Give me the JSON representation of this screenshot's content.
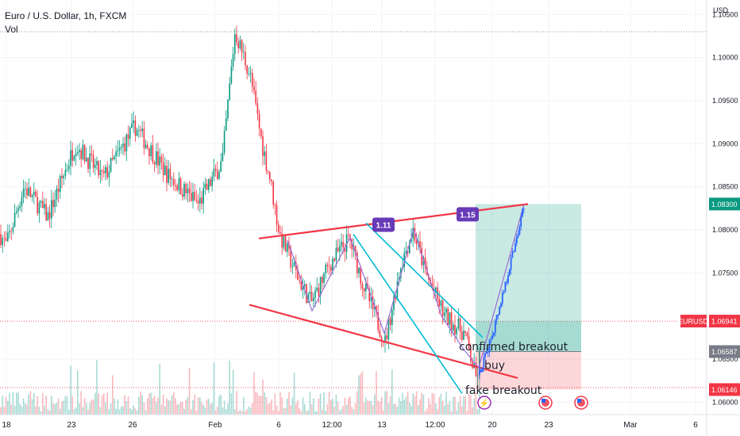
{
  "header": {
    "symbol_line": "Euro / U.S. Dollar, 1h, FXCM",
    "indicator": "Vol"
  },
  "chart_data": {
    "type": "candlestick",
    "symbol": "EURUSD",
    "currency_label": "USD",
    "ylim": [
      1.0585,
      1.1065
    ],
    "y_ticks": [
      "1.10500",
      "1.10000",
      "1.09500",
      "1.09000",
      "1.08500",
      "1.08000",
      "1.07500",
      "1.06500",
      "1.06000"
    ],
    "x_ticks": [
      "18",
      "23",
      "26",
      "Feb",
      "6",
      "12:00",
      "13",
      "12:00",
      "20",
      "23",
      "Mar",
      "6"
    ],
    "price_labels": [
      {
        "symbol": "",
        "value": "1.08300",
        "color": "#089981"
      },
      {
        "symbol": "EURUSD",
        "value": "1.06941",
        "color": "#f23645"
      },
      {
        "symbol": "",
        "value": "1.06587",
        "color": "#787b86"
      },
      {
        "symbol": "",
        "value": "1.06146",
        "color": "#f23645"
      }
    ],
    "dotted_levels": [
      1.103,
      1.0694,
      1.0617
    ],
    "fib_tags": [
      "1.11",
      "1.15"
    ],
    "annotations": [
      "confirmed breakout",
      "buy",
      "fake breakout"
    ],
    "colors": {
      "up": "#089981",
      "down": "#f23645",
      "projection": "#2962ff",
      "wedge": "#f23645",
      "channel": "#00bcd4",
      "zigzag": "#9c6cd4",
      "tag": "#673ab7"
    }
  }
}
